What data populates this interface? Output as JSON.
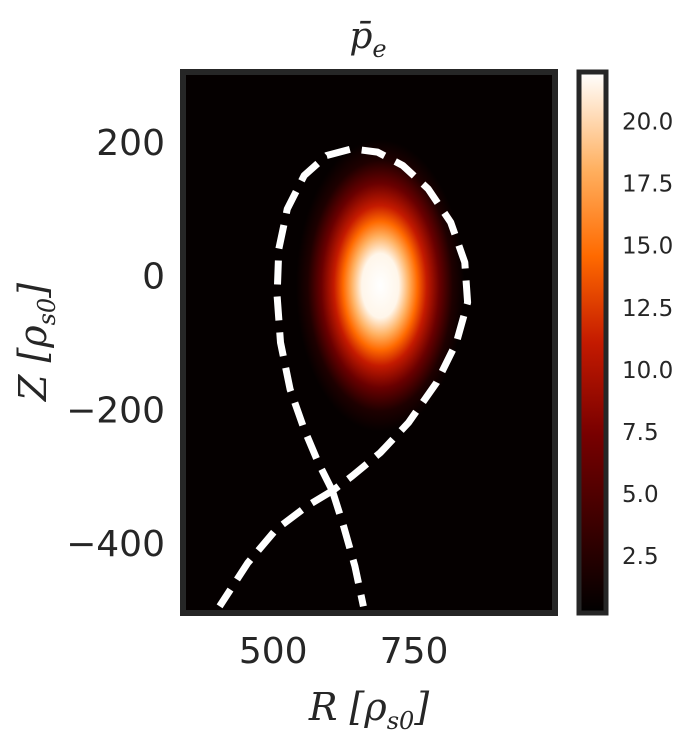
{
  "chart_data": {
    "type": "heatmap",
    "title": "p̄",
    "title_sub": "e",
    "xlabel": "R [ρ",
    "xlabel_sub": "s0",
    "xlabel_close": "]",
    "ylabel": "Z [ρ",
    "ylabel_sub": "s0",
    "ylabel_close": "]",
    "xlim": [
      340,
      1000
    ],
    "ylim": [
      -505,
      305
    ],
    "x_ticks": [
      {
        "value": 500,
        "label": "500"
      },
      {
        "value": 750,
        "label": "750"
      }
    ],
    "y_ticks": [
      {
        "value": 200,
        "label": "200"
      },
      {
        "value": 0,
        "label": "0"
      },
      {
        "value": -200,
        "label": "−200"
      },
      {
        "value": -400,
        "label": "−400"
      }
    ],
    "colorbar": {
      "colormap": "gist_heat",
      "range": [
        0.2,
        22
      ],
      "ticks": [
        {
          "value": 2.5,
          "label": "2.5"
        },
        {
          "value": 5.0,
          "label": "5.0"
        },
        {
          "value": 7.5,
          "label": "7.5"
        },
        {
          "value": 10.0,
          "label": "10.0"
        },
        {
          "value": 12.5,
          "label": "12.5"
        },
        {
          "value": 15.0,
          "label": "15.0"
        },
        {
          "value": 17.5,
          "label": "17.5"
        },
        {
          "value": 20.0,
          "label": "20.0"
        }
      ]
    },
    "peak": {
      "R": 690,
      "Z": -15,
      "value": 22,
      "width_R": 65,
      "width_Z": 95
    },
    "separatrix": {
      "style": "dashed",
      "color": "#ffffff",
      "points": [
        [
          605,
          -322
        ],
        [
          580,
          -280
        ],
        [
          555,
          -230
        ],
        [
          530,
          -170
        ],
        [
          513,
          -100
        ],
        [
          507,
          -30
        ],
        [
          510,
          40
        ],
        [
          525,
          100
        ],
        [
          555,
          150
        ],
        [
          595,
          180
        ],
        [
          640,
          190
        ],
        [
          685,
          185
        ],
        [
          730,
          165
        ],
        [
          775,
          130
        ],
        [
          815,
          80
        ],
        [
          840,
          20
        ],
        [
          845,
          -40
        ],
        [
          825,
          -100
        ],
        [
          790,
          -160
        ],
        [
          740,
          -220
        ],
        [
          690,
          -265
        ],
        [
          640,
          -300
        ],
        [
          605,
          -322
        ]
      ],
      "leg_left": [
        [
          605,
          -322
        ],
        [
          560,
          -345
        ],
        [
          505,
          -380
        ],
        [
          455,
          -430
        ],
        [
          405,
          -495
        ]
      ],
      "leg_right": [
        [
          605,
          -322
        ],
        [
          625,
          -375
        ],
        [
          645,
          -435
        ],
        [
          660,
          -495
        ]
      ]
    }
  }
}
